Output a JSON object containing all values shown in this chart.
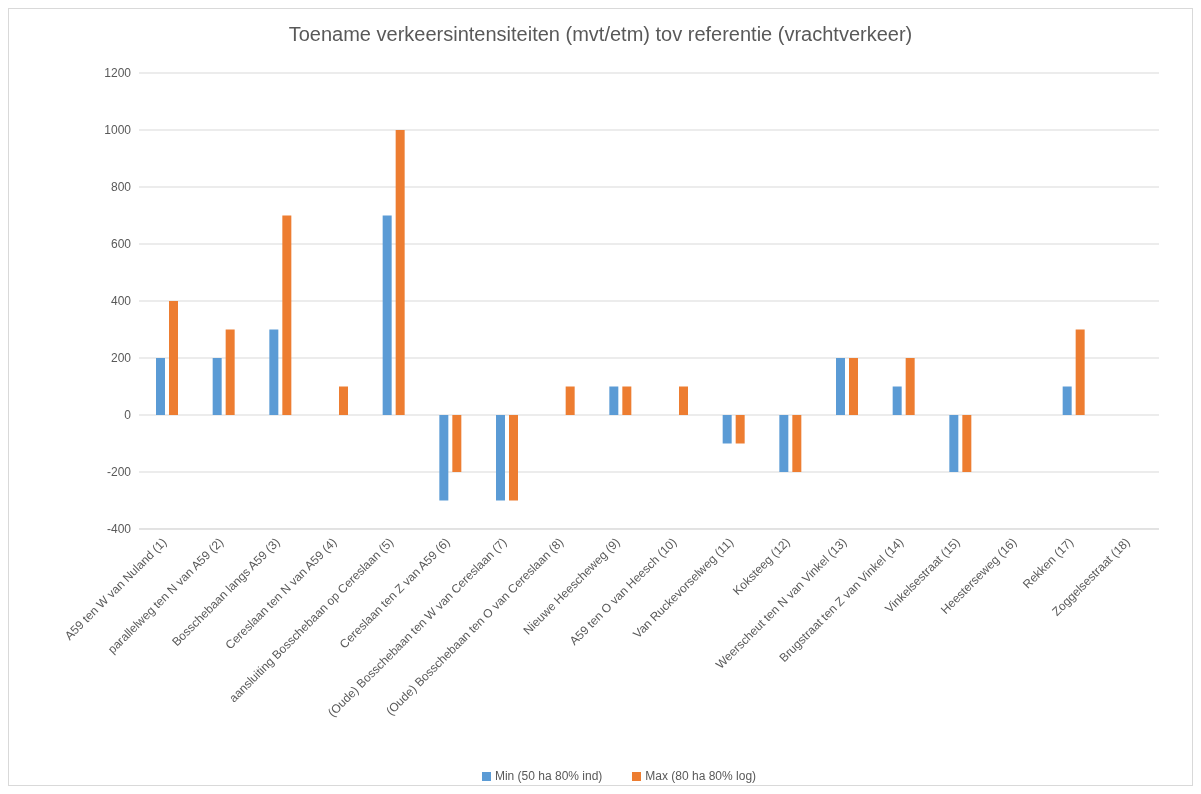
{
  "chart_data": {
    "type": "bar",
    "title": "Toename verkeersintensiteiten (mvt/etm) tov referentie (vrachtverkeer)",
    "categories": [
      "A59 ten W van Nuland (1)",
      "parallelweg ten N van A59 (2)",
      "Bosschebaan  langs A59 (3)",
      "Cereslaan ten N van A59 (4)",
      "aansluiting Bosschebaan op Cereslaan (5)",
      "Cereslaan ten Z van A59 (6)",
      "(Oude) Bosschebaan ten W van Cereslaan (7)",
      "(Oude) Bosschebaan ten O van Cereslaan (8)",
      "Nieuwe Heescheweg (9)",
      "A59 ten O van Heesch (10)",
      "Van Ruckevorselweg (11)",
      "Koksteeg (12)",
      "Weerscheut ten N van Vinkel (13)",
      "Brugstraat ten Z van Vinkel (14)",
      "Vinkelsestraat (15)",
      "Heesterseweg (16)",
      "Rekken (17)",
      "Zoggelsestraat (18)"
    ],
    "series": [
      {
        "name": "Min (50 ha 80% ind)",
        "color": "#5b9bd5",
        "values": [
          200,
          200,
          300,
          0,
          700,
          -300,
          -300,
          0,
          100,
          0,
          -100,
          -200,
          200,
          100,
          -200,
          0,
          100,
          0
        ]
      },
      {
        "name": "Max (80 ha 80% log)",
        "color": "#ed7d31",
        "values": [
          400,
          300,
          700,
          100,
          1000,
          -200,
          -300,
          100,
          100,
          100,
          -100,
          -200,
          200,
          200,
          -200,
          0,
          300,
          0
        ]
      }
    ],
    "ylim": [
      -400,
      1200
    ],
    "yticks": [
      -400,
      -200,
      0,
      200,
      400,
      600,
      800,
      1000,
      1200
    ],
    "grid": "y",
    "legend": "bottom"
  }
}
